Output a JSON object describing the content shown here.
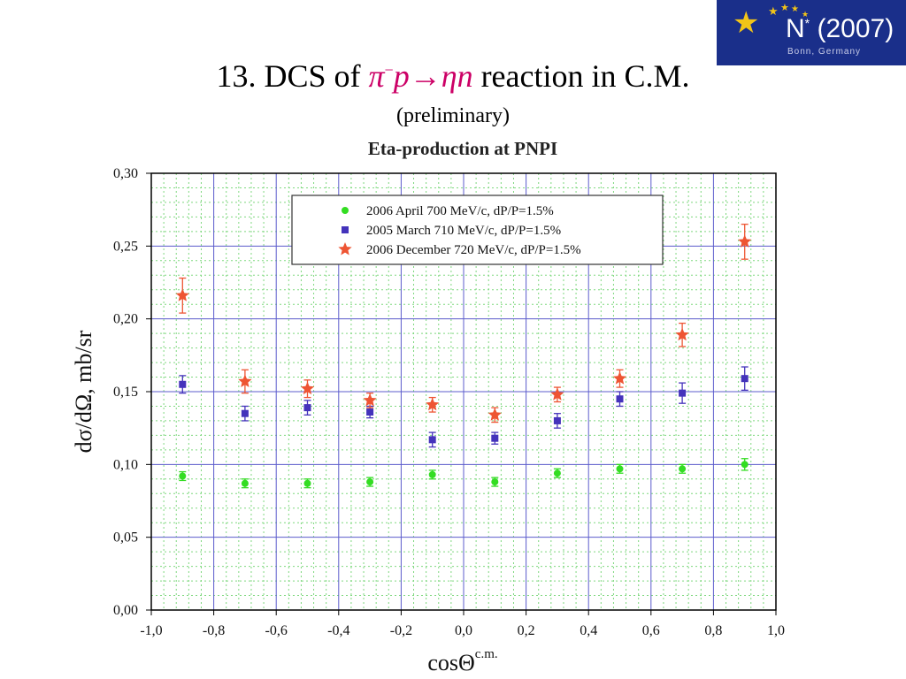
{
  "slide": {
    "title_prefix": "13. DCS of",
    "reaction_main": "π",
    "reaction_sup": "−",
    "reaction_rest": "p→ηn",
    "title_suffix": "reaction in C.M.",
    "subtitle": "(preliminary)"
  },
  "logo": {
    "name": "N",
    "name_sup": "*",
    "year": "(2007)",
    "location": "Bonn, Germany"
  },
  "chart_data": {
    "type": "scatter",
    "title": "Eta-production at PNPI",
    "xlabel": "cosΘ",
    "xlabel_sup": "c.m.",
    "ylabel": "dσ/dΩ, mb/sr",
    "xlim": [
      -1.0,
      1.0
    ],
    "ylim": [
      0.0,
      0.3
    ],
    "xticks": [
      "-1,0",
      "-0,8",
      "-0,6",
      "-0,4",
      "-0,2",
      "0,0",
      "0,2",
      "0,4",
      "0,6",
      "0,8",
      "1,0"
    ],
    "yticks": [
      "0,00",
      "0,05",
      "0,10",
      "0,15",
      "0,20",
      "0,25",
      "0,30"
    ],
    "grid": true,
    "legend_position": "top-right",
    "series": [
      {
        "name": "2006 April 700 MeV/c, dP/P=1.5%",
        "marker": "circle",
        "color": "#33dd22",
        "x": [
          -0.9,
          -0.7,
          -0.5,
          -0.3,
          -0.1,
          0.1,
          0.3,
          0.5,
          0.7,
          0.9
        ],
        "y": [
          0.092,
          0.087,
          0.087,
          0.088,
          0.093,
          0.088,
          0.094,
          0.097,
          0.097,
          0.1
        ],
        "err": [
          0.003,
          0.003,
          0.003,
          0.003,
          0.003,
          0.003,
          0.003,
          0.003,
          0.003,
          0.004
        ]
      },
      {
        "name": "2005 March 710 MeV/c, dP/P=1.5%",
        "marker": "square",
        "color": "#4433bb",
        "x": [
          -0.9,
          -0.7,
          -0.5,
          -0.3,
          -0.1,
          0.1,
          0.3,
          0.5,
          0.7,
          0.9
        ],
        "y": [
          0.155,
          0.135,
          0.139,
          0.136,
          0.117,
          0.118,
          0.13,
          0.145,
          0.149,
          0.159
        ],
        "err": [
          0.006,
          0.005,
          0.005,
          0.004,
          0.005,
          0.004,
          0.005,
          0.005,
          0.007,
          0.008
        ]
      },
      {
        "name": "2006 December 720 MeV/c, dP/P=1.5%",
        "marker": "star",
        "color": "#ee5533",
        "x": [
          -0.9,
          -0.7,
          -0.5,
          -0.3,
          -0.1,
          0.1,
          0.3,
          0.5,
          0.7,
          0.9
        ],
        "y": [
          0.216,
          0.157,
          0.152,
          0.144,
          0.141,
          0.134,
          0.148,
          0.159,
          0.189,
          0.253
        ],
        "err": [
          0.012,
          0.008,
          0.006,
          0.005,
          0.005,
          0.005,
          0.005,
          0.006,
          0.008,
          0.012
        ]
      }
    ]
  }
}
